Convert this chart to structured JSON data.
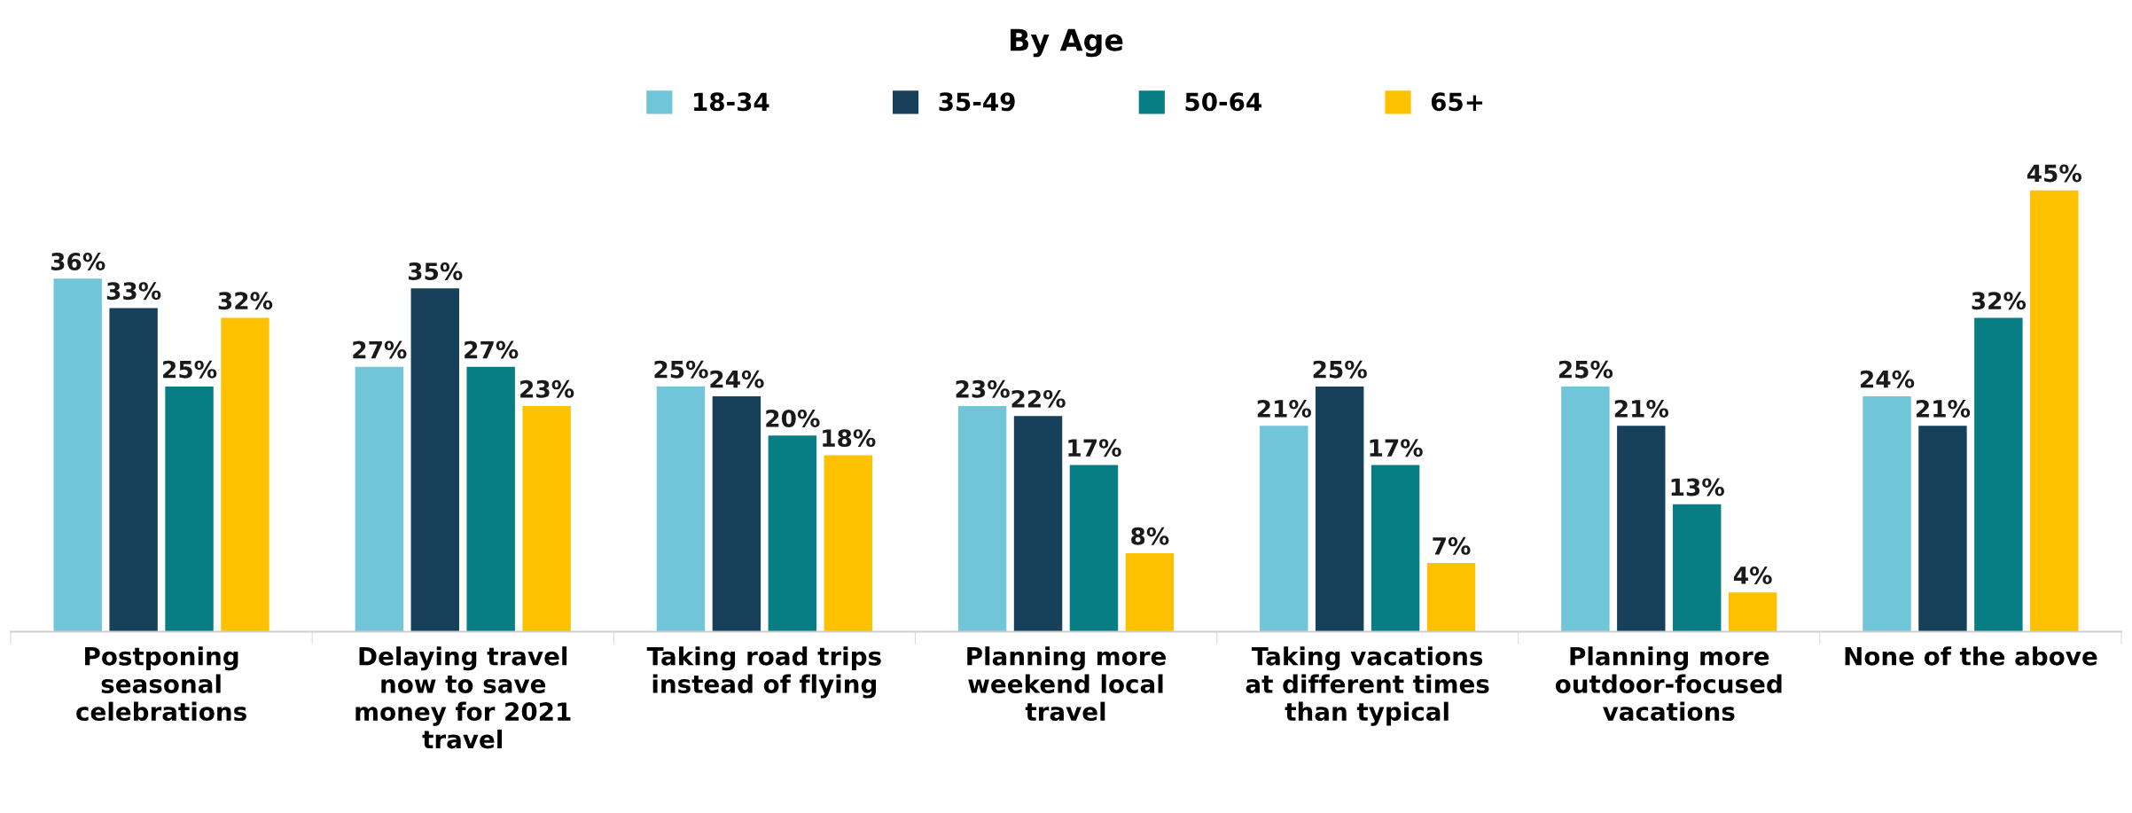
{
  "chart_data": {
    "type": "bar",
    "title": "By Age",
    "categories": [
      "Postponing\nseasonal\ncelebrations",
      "Delaying travel\nnow to save\nmoney for 2021\ntravel",
      "Taking road trips\ninstead of flying",
      "Planning more\nweekend local\ntravel",
      "Taking vacations\nat different times\nthan typical",
      "Planning more\noutdoor-focused\nvacations",
      "None of the above"
    ],
    "series": [
      {
        "name": "18-34",
        "color": "#70c5d8",
        "values": [
          36,
          27,
          25,
          23,
          21,
          25,
          24
        ],
        "value_labels": [
          "36%",
          "27%",
          "25%",
          "23%",
          "21%",
          "25%",
          "24%"
        ]
      },
      {
        "name": "35-49",
        "color": "#17415a",
        "values": [
          33,
          35,
          24,
          22,
          25,
          21,
          21
        ],
        "value_labels": [
          "33%",
          "35%",
          "24%",
          "22%",
          "25%",
          "21%",
          "21%"
        ]
      },
      {
        "name": "50-64",
        "color": "#067e84",
        "values": [
          25,
          27,
          20,
          17,
          17,
          13,
          32
        ],
        "value_labels": [
          "25%",
          "27%",
          "20%",
          "17%",
          "17%",
          "13%",
          "32%"
        ]
      },
      {
        "name": "65+",
        "color": "#fdc100",
        "values": [
          32,
          23,
          18,
          8,
          7,
          4,
          45
        ],
        "value_labels": [
          "32%",
          "23%",
          "18%",
          "8%",
          "7%",
          "4%",
          "45%"
        ]
      }
    ],
    "legend": "top",
    "grid": false
  }
}
